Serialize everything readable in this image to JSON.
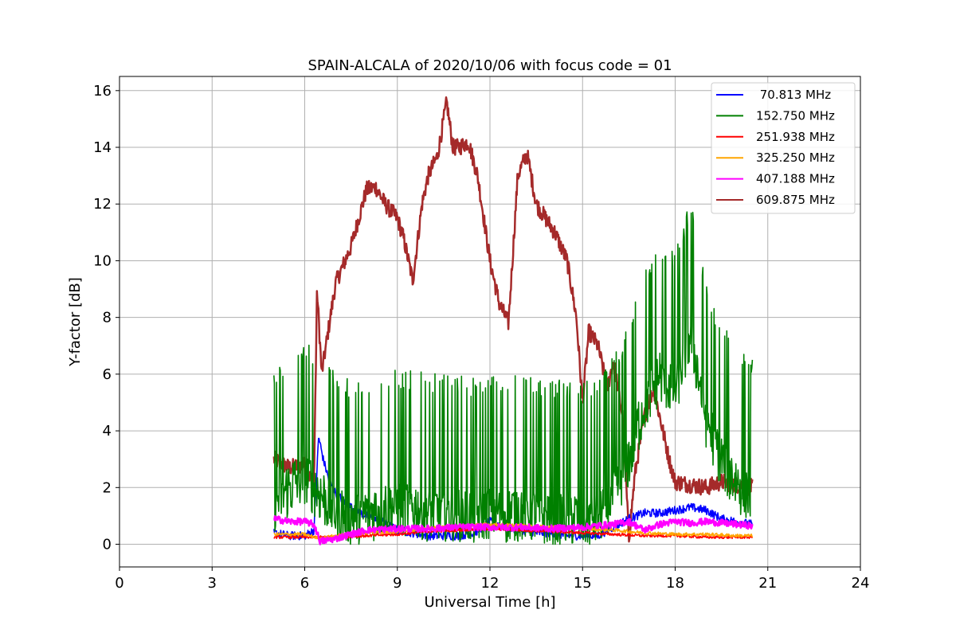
{
  "chart_data": {
    "type": "line",
    "title": "SPAIN-ALCALA of 2020/10/06 with focus code = 01",
    "xlabel": "Universal Time [h]",
    "ylabel": "Y-factor [dB]",
    "xlim": [
      0,
      24
    ],
    "ylim": [
      -0.8,
      16.5
    ],
    "xticks": [
      0,
      3,
      6,
      9,
      12,
      15,
      18,
      21,
      24
    ],
    "yticks": [
      0,
      2,
      4,
      6,
      8,
      10,
      12,
      14,
      16
    ],
    "grid": true,
    "legend_position": "top-right",
    "series": [
      {
        "name": " 70.813 MHz",
        "color": "#0000ff",
        "x": [
          5.0,
          5.5,
          6.0,
          6.3,
          6.45,
          6.6,
          6.8,
          7.0,
          7.5,
          8.0,
          8.5,
          9.0,
          9.5,
          10.0,
          10.5,
          11.0,
          11.5,
          12.0,
          12.5,
          13.0,
          13.5,
          14.0,
          14.5,
          15.0,
          15.5,
          16.0,
          16.5,
          17.0,
          17.5,
          18.0,
          18.5,
          19.0,
          19.5,
          20.0,
          20.5
        ],
        "y": [
          0.4,
          0.3,
          0.3,
          0.5,
          3.8,
          3.0,
          2.2,
          1.8,
          1.3,
          1.0,
          0.8,
          0.5,
          0.4,
          0.3,
          0.3,
          0.3,
          0.4,
          0.8,
          0.6,
          0.5,
          0.4,
          0.4,
          0.3,
          0.3,
          0.3,
          0.6,
          0.9,
          1.1,
          1.1,
          1.2,
          1.3,
          1.2,
          0.9,
          0.8,
          0.7
        ]
      },
      {
        "name": "152.750 MHz",
        "color": "#008000",
        "x": [
          5.0,
          5.5,
          6.0,
          6.5,
          7.0,
          7.5,
          8.0,
          8.5,
          9.0,
          9.5,
          10.0,
          10.5,
          11.0,
          11.5,
          12.0,
          12.5,
          13.0,
          13.5,
          14.0,
          14.5,
          15.0,
          15.5,
          16.0,
          16.5,
          17.0,
          17.5,
          18.0,
          18.5,
          19.0,
          19.5,
          20.0,
          20.5
        ],
        "y": [
          1.5,
          2.0,
          2.5,
          1.8,
          1.2,
          1.0,
          1.1,
          1.3,
          1.4,
          1.3,
          1.2,
          1.2,
          1.2,
          1.0,
          1.3,
          1.1,
          1.2,
          1.1,
          1.0,
          1.0,
          0.9,
          1.0,
          1.8,
          3.0,
          5.0,
          6.0,
          5.5,
          7.5,
          4.5,
          3.0,
          2.2,
          1.8
        ],
        "amplitude": 2.2
      },
      {
        "name": "251.938 MHz",
        "color": "#ff0000",
        "x": [
          5.0,
          6.0,
          7.0,
          8.0,
          9.0,
          10.0,
          11.0,
          12.0,
          13.0,
          14.0,
          15.0,
          16.0,
          17.0,
          18.0,
          19.0,
          20.0,
          20.5
        ],
        "y": [
          0.25,
          0.25,
          0.25,
          0.3,
          0.35,
          0.45,
          0.5,
          0.55,
          0.5,
          0.45,
          0.4,
          0.35,
          0.3,
          0.3,
          0.25,
          0.25,
          0.25
        ]
      },
      {
        "name": "325.250 MHz",
        "color": "#ffa500",
        "x": [
          5.0,
          6.0,
          6.5,
          7.0,
          8.0,
          9.0,
          10.0,
          11.0,
          12.0,
          13.0,
          14.0,
          15.0,
          16.0,
          17.0,
          18.0,
          19.0,
          20.0,
          20.5
        ],
        "y": [
          0.35,
          0.35,
          0.2,
          0.3,
          0.4,
          0.45,
          0.55,
          0.65,
          0.7,
          0.65,
          0.6,
          0.55,
          0.5,
          0.4,
          0.35,
          0.35,
          0.3,
          0.3
        ]
      },
      {
        "name": "407.188 MHz",
        "color": "#ff00ff",
        "x": [
          5.0,
          5.5,
          6.0,
          6.3,
          6.5,
          7.0,
          7.5,
          8.0,
          9.0,
          10.0,
          11.0,
          12.0,
          13.0,
          14.0,
          15.0,
          16.0,
          16.5,
          17.0,
          17.5,
          18.0,
          18.5,
          19.0,
          19.5,
          20.0,
          20.5
        ],
        "y": [
          0.9,
          0.8,
          0.8,
          0.7,
          0.1,
          0.2,
          0.35,
          0.5,
          0.55,
          0.55,
          0.6,
          0.6,
          0.6,
          0.55,
          0.6,
          0.7,
          0.8,
          0.5,
          0.7,
          0.8,
          0.75,
          0.8,
          0.75,
          0.7,
          0.65
        ]
      },
      {
        "name": "609.875 MHz",
        "color": "#a52a2a",
        "x": [
          5.0,
          5.5,
          6.0,
          6.2,
          6.3,
          6.4,
          6.55,
          6.8,
          7.0,
          7.5,
          8.0,
          8.3,
          8.6,
          9.0,
          9.2,
          9.5,
          9.8,
          10.0,
          10.3,
          10.6,
          10.8,
          11.0,
          11.3,
          11.6,
          12.0,
          12.3,
          12.6,
          12.9,
          13.2,
          13.5,
          13.8,
          14.1,
          14.5,
          14.8,
          15.0,
          15.2,
          15.5,
          15.8,
          16.0,
          16.3,
          16.5,
          16.7,
          17.0,
          17.3,
          17.6,
          17.8,
          18.0,
          18.5,
          19.0,
          19.5,
          20.0,
          20.5
        ],
        "y": [
          3.0,
          2.7,
          2.8,
          2.3,
          2.2,
          9.0,
          6.0,
          7.8,
          9.2,
          10.5,
          12.5,
          12.6,
          12.0,
          11.5,
          10.8,
          9.3,
          12.0,
          13.0,
          13.7,
          15.6,
          14.0,
          14.0,
          14.2,
          13.0,
          10.0,
          8.5,
          7.8,
          13.0,
          13.8,
          12.0,
          11.5,
          11.0,
          10.0,
          8.0,
          5.0,
          7.5,
          7.0,
          5.5,
          6.5,
          4.5,
          0.2,
          2.5,
          4.5,
          5.5,
          4.0,
          3.0,
          2.2,
          2.1,
          2.0,
          2.2,
          2.1,
          2.0
        ]
      }
    ]
  }
}
